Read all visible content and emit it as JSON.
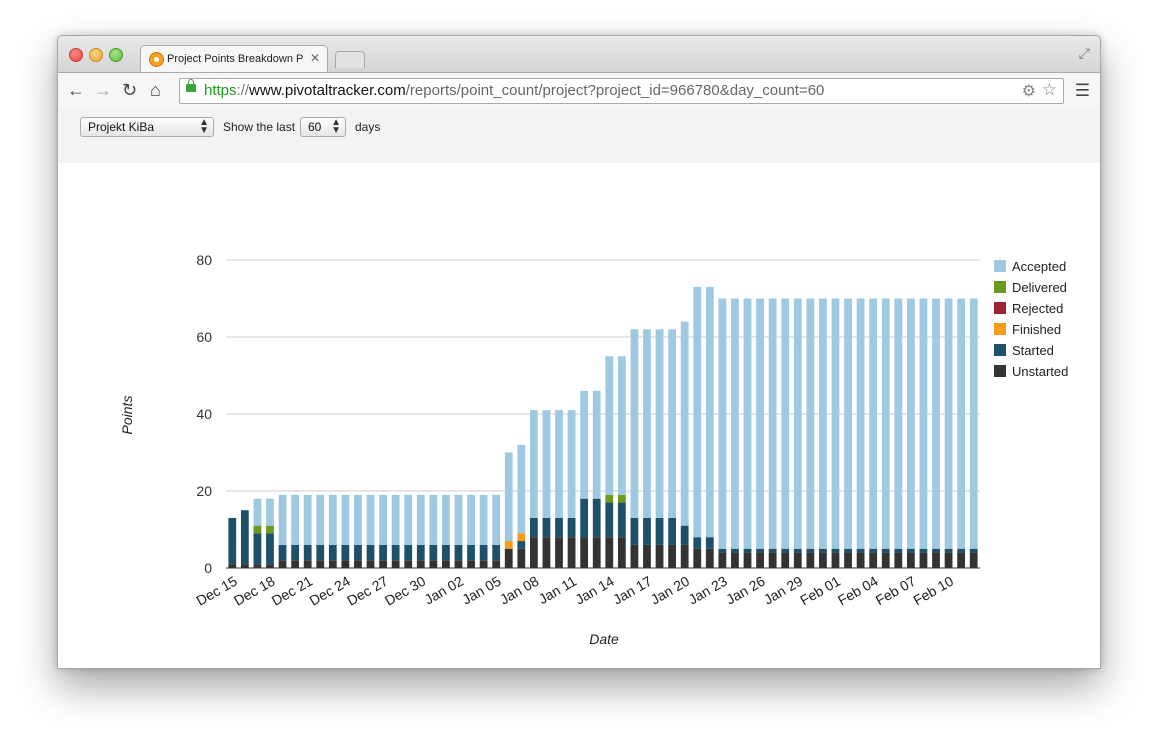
{
  "browser": {
    "tab_title": "Project Points Breakdown P",
    "url_scheme": "https",
    "url_sep": "://",
    "url_host": "www.pivotaltracker.com",
    "url_path": "/reports/point_count/project?project_id=966780&day_count=60"
  },
  "controls": {
    "project_value": "Projekt KiBa",
    "show_label": "Show the last",
    "days_value": "60",
    "days_label": "days"
  },
  "chart_data": {
    "type": "bar",
    "stacked": true,
    "xlabel": "Date",
    "ylabel": "Points",
    "ylim": [
      0,
      80
    ],
    "yticks": [
      0,
      20,
      40,
      60,
      80
    ],
    "grid": true,
    "legend_position": "right",
    "tick_labels": [
      "Dec 15",
      "Dec 18",
      "Dec 21",
      "Dec 24",
      "Dec 27",
      "Dec 30",
      "Jan 02",
      "Jan 05",
      "Jan 08",
      "Jan 11",
      "Jan 14",
      "Jan 17",
      "Jan 20",
      "Jan 23",
      "Jan 26",
      "Jan 29",
      "Feb 01",
      "Feb 04",
      "Feb 07",
      "Feb 10"
    ],
    "categories": [
      "Dec 15",
      "Dec 16",
      "Dec 17",
      "Dec 18",
      "Dec 19",
      "Dec 20",
      "Dec 21",
      "Dec 22",
      "Dec 23",
      "Dec 24",
      "Dec 25",
      "Dec 26",
      "Dec 27",
      "Dec 28",
      "Dec 29",
      "Dec 30",
      "Dec 31",
      "Jan 01",
      "Jan 02",
      "Jan 03",
      "Jan 04",
      "Jan 05",
      "Jan 06",
      "Jan 07",
      "Jan 08",
      "Jan 09",
      "Jan 10",
      "Jan 11",
      "Jan 12",
      "Jan 13",
      "Jan 14",
      "Jan 15",
      "Jan 16",
      "Jan 17",
      "Jan 18",
      "Jan 19",
      "Jan 20",
      "Jan 21",
      "Jan 22",
      "Jan 23",
      "Jan 24",
      "Jan 25",
      "Jan 26",
      "Jan 27",
      "Jan 28",
      "Jan 29",
      "Jan 30",
      "Jan 31",
      "Feb 01",
      "Feb 02",
      "Feb 03",
      "Feb 04",
      "Feb 05",
      "Feb 06",
      "Feb 07",
      "Feb 08",
      "Feb 09",
      "Feb 10",
      "Feb 11",
      "Feb 12"
    ],
    "series": [
      {
        "name": "Accepted",
        "color": "#9fc9e1",
        "values": [
          0,
          0,
          7,
          7,
          13,
          13,
          13,
          13,
          13,
          13,
          13,
          13,
          13,
          13,
          13,
          13,
          13,
          13,
          13,
          13,
          13,
          13,
          23,
          23,
          28,
          28,
          28,
          28,
          28,
          28,
          36,
          36,
          49,
          49,
          49,
          49,
          53,
          65,
          65,
          65,
          65,
          65,
          65,
          65,
          65,
          65,
          65,
          65,
          65,
          65,
          65,
          65,
          65,
          65,
          65,
          65,
          65,
          65,
          65,
          65
        ]
      },
      {
        "name": "Delivered",
        "color": "#6c9a1f",
        "values": [
          0,
          0,
          2,
          2,
          0,
          0,
          0,
          0,
          0,
          0,
          0,
          0,
          0,
          0,
          0,
          0,
          0,
          0,
          0,
          0,
          0,
          0,
          0,
          0,
          0,
          0,
          0,
          0,
          0,
          0,
          2,
          2,
          0,
          0,
          0,
          0,
          0,
          0,
          0,
          0,
          0,
          0,
          0,
          0,
          0,
          0,
          0,
          0,
          0,
          0,
          0,
          0,
          0,
          0,
          0,
          0,
          0,
          0,
          0,
          0
        ]
      },
      {
        "name": "Rejected",
        "color": "#9b2335",
        "values": [
          0,
          0,
          0,
          0,
          0,
          0,
          0,
          0,
          0,
          0,
          0,
          0,
          0,
          0,
          0,
          0,
          0,
          0,
          0,
          0,
          0,
          0,
          0,
          0,
          0,
          0,
          0,
          0,
          0,
          0,
          0,
          0,
          0,
          0,
          0,
          0,
          0,
          0,
          0,
          0,
          0,
          0,
          0,
          0,
          0,
          0,
          0,
          0,
          0,
          0,
          0,
          0,
          0,
          0,
          0,
          0,
          0,
          0,
          0,
          0
        ]
      },
      {
        "name": "Finished",
        "color": "#f39c1a",
        "values": [
          0,
          0,
          0,
          0,
          0,
          0,
          0,
          0,
          0,
          0,
          0,
          0,
          0,
          0,
          0,
          0,
          0,
          0,
          0,
          0,
          0,
          0,
          2,
          2,
          0,
          0,
          0,
          0,
          0,
          0,
          0,
          0,
          0,
          0,
          0,
          0,
          0,
          0,
          0,
          0,
          0,
          0,
          0,
          0,
          0,
          0,
          0,
          0,
          0,
          0,
          0,
          0,
          0,
          0,
          0,
          0,
          0,
          0,
          0,
          0
        ]
      },
      {
        "name": "Started",
        "color": "#1f5069",
        "values": [
          12,
          14,
          8,
          8,
          4,
          4,
          4,
          4,
          4,
          4,
          4,
          4,
          4,
          4,
          4,
          4,
          4,
          4,
          4,
          4,
          4,
          4,
          0,
          2,
          5,
          5,
          5,
          5,
          10,
          10,
          9,
          9,
          7,
          7,
          7,
          7,
          5,
          3,
          3,
          1,
          1,
          1,
          1,
          1,
          1,
          1,
          1,
          1,
          1,
          1,
          1,
          1,
          1,
          1,
          1,
          1,
          1,
          1,
          1,
          1
        ]
      },
      {
        "name": "Unstarted",
        "color": "#333333",
        "values": [
          1,
          1,
          1,
          1,
          2,
          2,
          2,
          2,
          2,
          2,
          2,
          2,
          2,
          2,
          2,
          2,
          2,
          2,
          2,
          2,
          2,
          2,
          5,
          5,
          8,
          8,
          8,
          8,
          8,
          8,
          8,
          8,
          6,
          6,
          6,
          6,
          6,
          5,
          5,
          4,
          4,
          4,
          4,
          4,
          4,
          4,
          4,
          4,
          4,
          4,
          4,
          4,
          4,
          4,
          4,
          4,
          4,
          4,
          4,
          4
        ]
      }
    ]
  }
}
